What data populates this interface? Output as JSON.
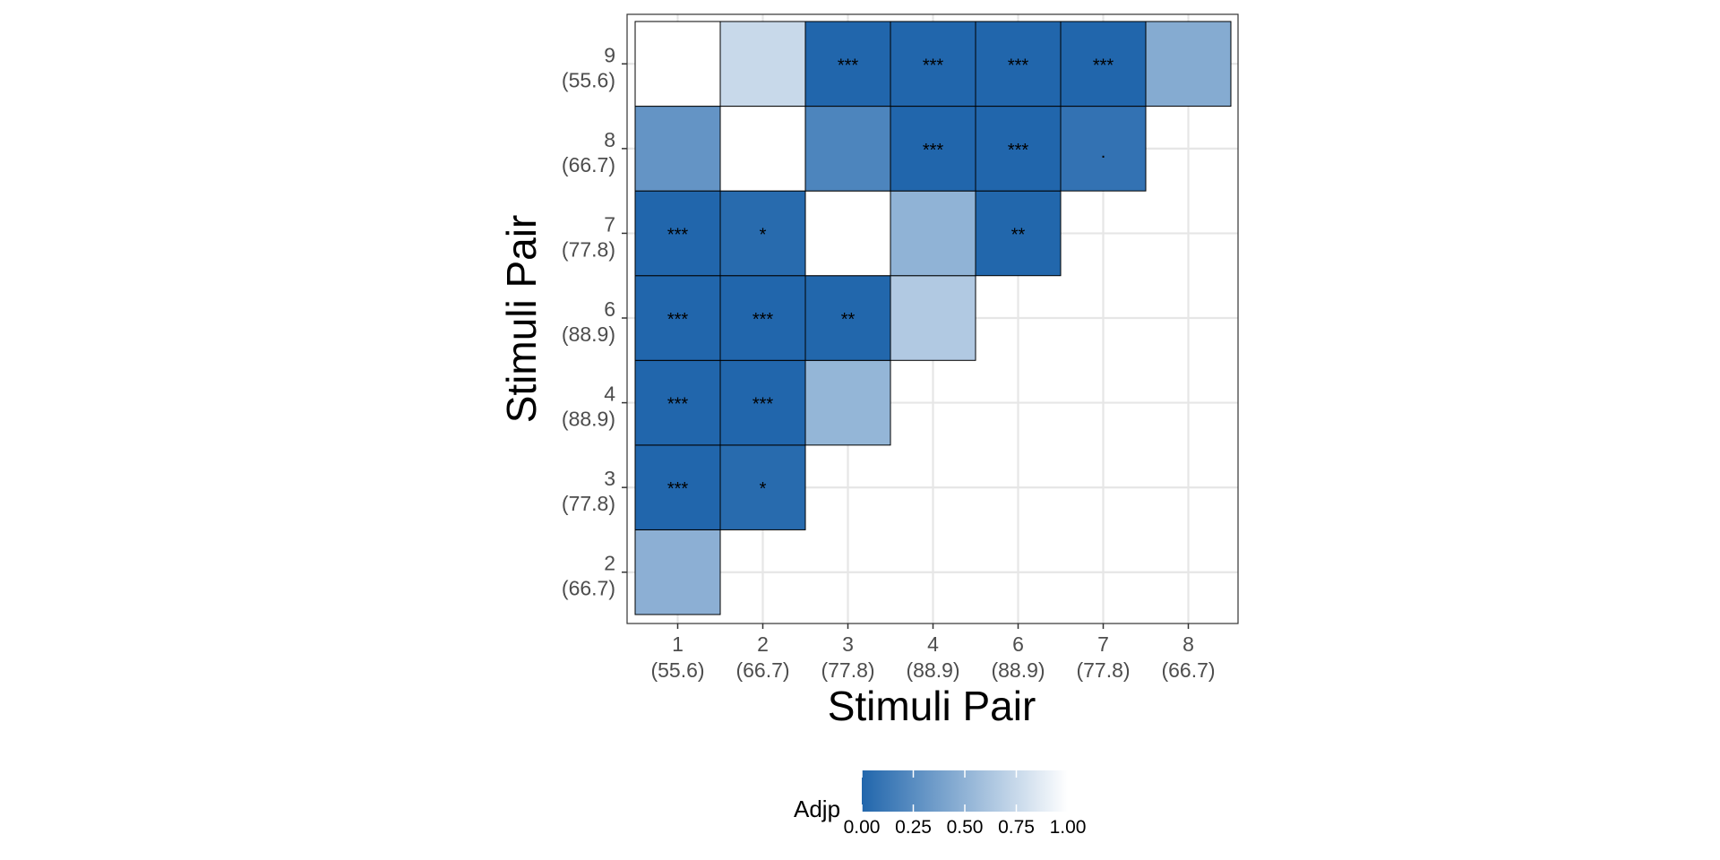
{
  "chart_data": {
    "type": "heatmap",
    "xlabel": "Stimuli Pair",
    "ylabel": "Stimuli Pair",
    "x_categories": [
      {
        "id": "1",
        "pct": "(55.6)"
      },
      {
        "id": "2",
        "pct": "(66.7)"
      },
      {
        "id": "3",
        "pct": "(77.8)"
      },
      {
        "id": "4",
        "pct": "(88.9)"
      },
      {
        "id": "6",
        "pct": "(88.9)"
      },
      {
        "id": "7",
        "pct": "(77.8)"
      },
      {
        "id": "8",
        "pct": "(66.7)"
      }
    ],
    "y_categories": [
      {
        "id": "2",
        "pct": "(66.7)"
      },
      {
        "id": "3",
        "pct": "(77.8)"
      },
      {
        "id": "4",
        "pct": "(88.9)"
      },
      {
        "id": "6",
        "pct": "(88.9)"
      },
      {
        "id": "7",
        "pct": "(77.8)"
      },
      {
        "id": "8",
        "pct": "(66.7)"
      },
      {
        "id": "9",
        "pct": "(55.6)"
      }
    ],
    "cells": [
      {
        "x": "1",
        "y": "2",
        "adjp": 0.48,
        "label": ""
      },
      {
        "x": "1",
        "y": "3",
        "adjp": 0.0,
        "label": "***"
      },
      {
        "x": "2",
        "y": "3",
        "adjp": 0.03,
        "label": "*"
      },
      {
        "x": "1",
        "y": "4",
        "adjp": 0.0,
        "label": "***"
      },
      {
        "x": "2",
        "y": "4",
        "adjp": 0.0,
        "label": "***"
      },
      {
        "x": "3",
        "y": "4",
        "adjp": 0.52,
        "label": ""
      },
      {
        "x": "1",
        "y": "6",
        "adjp": 0.0,
        "label": "***"
      },
      {
        "x": "2",
        "y": "6",
        "adjp": 0.0,
        "label": "***"
      },
      {
        "x": "3",
        "y": "6",
        "adjp": 0.005,
        "label": "**"
      },
      {
        "x": "4",
        "y": "6",
        "adjp": 0.65,
        "label": ""
      },
      {
        "x": "1",
        "y": "7",
        "adjp": 0.0,
        "label": "***"
      },
      {
        "x": "2",
        "y": "7",
        "adjp": 0.03,
        "label": "*"
      },
      {
        "x": "3",
        "y": "7",
        "adjp": 1.0,
        "label": ""
      },
      {
        "x": "4",
        "y": "7",
        "adjp": 0.5,
        "label": ""
      },
      {
        "x": "6",
        "y": "7",
        "adjp": 0.005,
        "label": "**"
      },
      {
        "x": "1",
        "y": "8",
        "adjp": 0.3,
        "label": ""
      },
      {
        "x": "2",
        "y": "8",
        "adjp": 1.0,
        "label": ""
      },
      {
        "x": "3",
        "y": "8",
        "adjp": 0.2,
        "label": ""
      },
      {
        "x": "4",
        "y": "8",
        "adjp": 0.0,
        "label": "***"
      },
      {
        "x": "6",
        "y": "8",
        "adjp": 0.0,
        "label": "***"
      },
      {
        "x": "7",
        "y": "8",
        "adjp": 0.08,
        "label": "."
      },
      {
        "x": "1",
        "y": "9",
        "adjp": 1.0,
        "label": ""
      },
      {
        "x": "2",
        "y": "9",
        "adjp": 0.75,
        "label": ""
      },
      {
        "x": "3",
        "y": "9",
        "adjp": 0.0,
        "label": "***"
      },
      {
        "x": "4",
        "y": "9",
        "adjp": 0.0,
        "label": "***"
      },
      {
        "x": "6",
        "y": "9",
        "adjp": 0.0,
        "label": "***"
      },
      {
        "x": "7",
        "y": "9",
        "adjp": 0.0,
        "label": "***"
      },
      {
        "x": "8",
        "y": "9",
        "adjp": 0.45,
        "label": ""
      }
    ],
    "legend": {
      "title": "Adjp",
      "position": "bottom",
      "ticks": [
        "0.00",
        "0.25",
        "0.50",
        "0.75",
        "1.00"
      ],
      "tick_values": [
        0,
        0.25,
        0.5,
        0.75,
        1.0
      ],
      "range": [
        0,
        1
      ],
      "color_low": "#2166ac",
      "color_high": "#ffffff"
    },
    "grid": true
  }
}
